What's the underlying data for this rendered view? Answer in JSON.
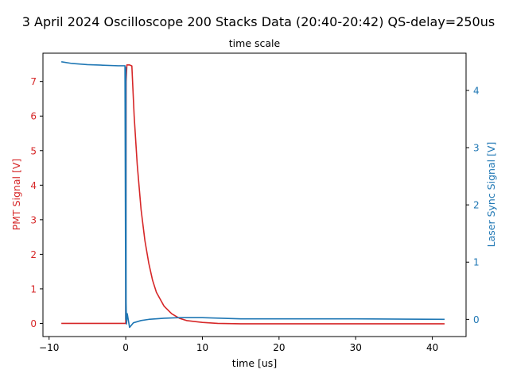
{
  "chart_data": {
    "type": "line",
    "title": "3 April 2024 Oscilloscope 200 Stacks Data (20:40-20:42) QS-delay=250us",
    "subtitle": "time scale",
    "xlabel": "time [us]",
    "ylabel_left": "PMT Signal [V]",
    "ylabel_right": "Laser Sync Signal [V]",
    "xlim": [
      -10.8,
      44.4
    ],
    "ylim_left": [
      -0.38,
      7.82
    ],
    "ylim_right": [
      -0.3,
      4.65
    ],
    "x_ticks": [
      -10,
      0,
      10,
      20,
      30,
      40
    ],
    "x_tick_labels": [
      "−10",
      "0",
      "10",
      "20",
      "30",
      "40"
    ],
    "left_ticks": [
      0,
      1,
      2,
      3,
      4,
      5,
      6,
      7
    ],
    "left_tick_labels": [
      "0",
      "1",
      "2",
      "3",
      "4",
      "5",
      "6",
      "7"
    ],
    "right_ticks": [
      0,
      1,
      2,
      3,
      4
    ],
    "right_tick_labels": [
      "0",
      "1",
      "2",
      "3",
      "4"
    ],
    "grid": false,
    "colors": {
      "pmt": "#d62728",
      "laser": "#1f77b4",
      "axis": "#000000"
    },
    "series": [
      {
        "axis": "left",
        "color": "#d62728",
        "x": [
          -8.4,
          -4,
          0,
          0.05,
          0.15,
          0.3,
          0.5,
          0.8,
          1.1,
          1.5,
          2.0,
          2.5,
          3.0,
          3.5,
          4.0,
          5.0,
          6.0,
          7.0,
          8.0,
          10.0,
          12.0,
          15.0,
          20.0,
          30.0,
          41.6
        ],
        "y": [
          0.0,
          0.0,
          0.0,
          7.0,
          7.48,
          7.48,
          7.48,
          7.45,
          6.0,
          4.6,
          3.3,
          2.4,
          1.75,
          1.25,
          0.9,
          0.5,
          0.28,
          0.15,
          0.08,
          0.03,
          0.0,
          -0.01,
          -0.01,
          -0.01,
          -0.01
        ]
      },
      {
        "axis": "right",
        "color": "#1f77b4",
        "x": [
          -8.4,
          -7,
          -5,
          -3,
          -1,
          -0.1,
          0,
          0.02,
          0.05,
          0.1,
          0.2,
          0.5,
          1.0,
          2.0,
          3.0,
          5.0,
          7.0,
          10.0,
          15.0,
          20.0,
          30.0,
          41.6
        ],
        "y": [
          4.5,
          4.47,
          4.45,
          4.44,
          4.43,
          4.43,
          0.0,
          4.4,
          0.3,
          -0.08,
          0.1,
          -0.14,
          -0.06,
          -0.02,
          0.0,
          0.02,
          0.03,
          0.03,
          0.01,
          0.01,
          0.01,
          0.0
        ]
      }
    ]
  }
}
